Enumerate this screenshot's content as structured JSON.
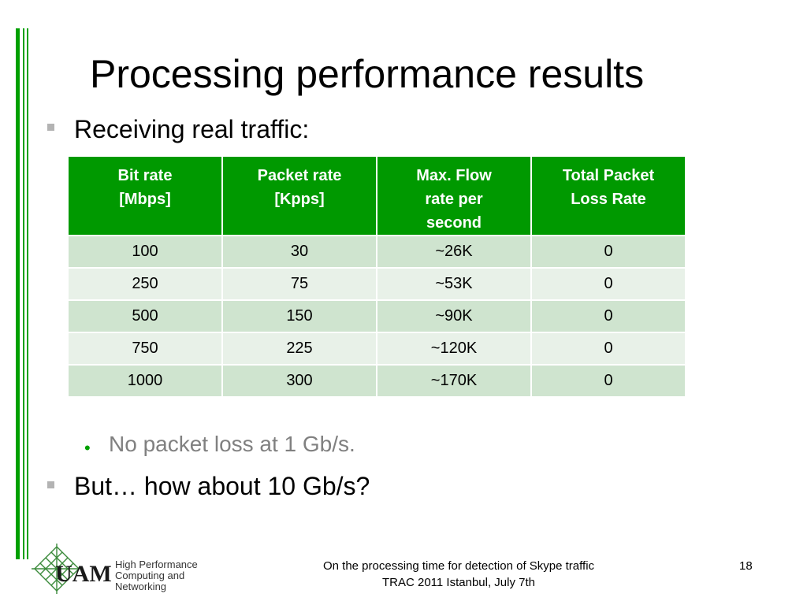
{
  "slide": {
    "title": "Processing performance results",
    "bullets": [
      {
        "text": "Receiving real traffic:"
      },
      {
        "text": "But… how about 10 Gb/s?"
      }
    ],
    "sub_bullet": {
      "marker": "•",
      "text": "No packet loss at 1 Gb/s."
    },
    "table": {
      "headers": [
        [
          "Bit rate",
          "[Mbps]"
        ],
        [
          "Packet rate",
          "[Kpps]"
        ],
        [
          "Max. Flow",
          "rate per",
          "second"
        ],
        [
          "Total Packet",
          "Loss Rate"
        ]
      ],
      "rows": [
        [
          "100",
          "30",
          "~26K",
          "0"
        ],
        [
          "250",
          "75",
          "~53K",
          "0"
        ],
        [
          "500",
          "150",
          "~90K",
          "0"
        ],
        [
          "750",
          "225",
          "~120K",
          "0"
        ],
        [
          "1000",
          "300",
          "~170K",
          "0"
        ]
      ]
    },
    "logo": {
      "mark": "UAM",
      "lines": [
        "High Performance",
        "Computing and",
        "Networking"
      ]
    },
    "footer": {
      "line1": "On the processing time for detection of Skype traffic",
      "line2": "TRAC 2011 Istanbul, July 7th"
    },
    "page_number": "18",
    "colors": {
      "accent": "#009900",
      "row_odd": "#cfe4cf",
      "row_even": "#e8f1e8",
      "sub_text": "#808080",
      "bullet_square": "#b3b3b3"
    }
  }
}
